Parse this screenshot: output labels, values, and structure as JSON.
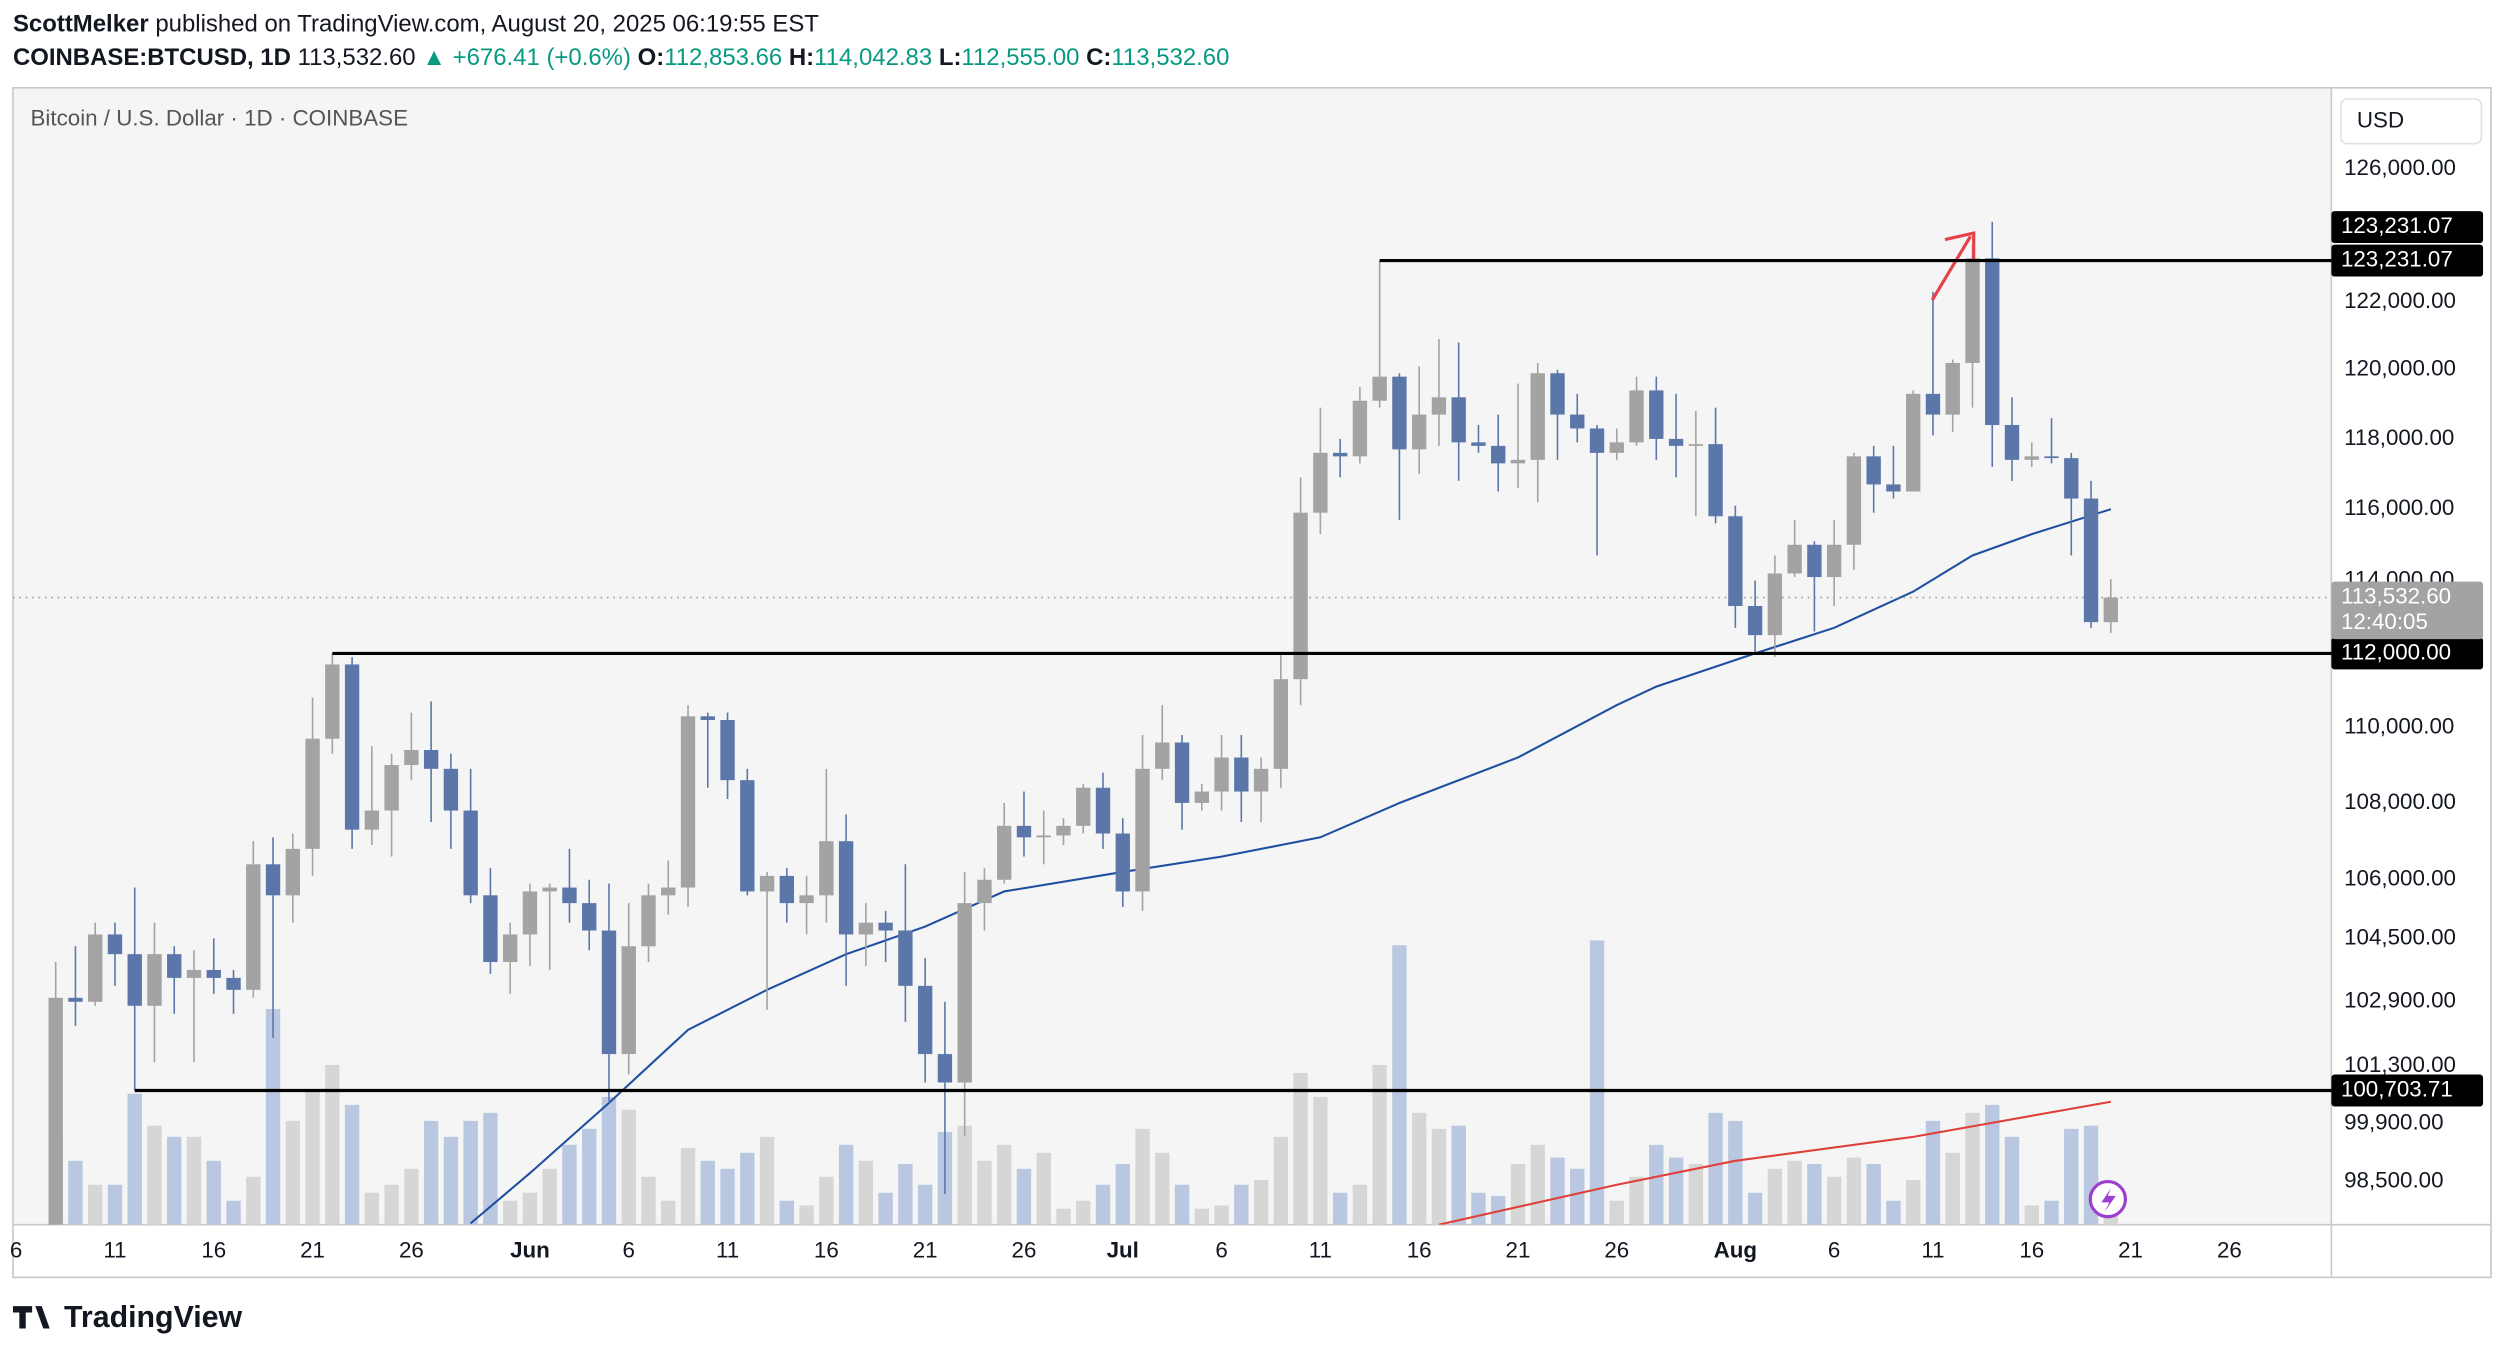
{
  "header": {
    "author": "ScottMelker",
    "published": "published on TradingView.com, August 20, 2025 06:19:55 EST",
    "symbol": "COINBASE:BTCUSD, 1D",
    "price": "113,532.60",
    "change": "▲ +676.41 (+0.6%)",
    "ohlc": [
      {
        "key": "O:",
        "value": "112,853.66"
      },
      {
        "key": "H:",
        "value": "114,042.83"
      },
      {
        "key": "L:",
        "value": "112,555.00"
      },
      {
        "key": "C:",
        "value": "113,532.60"
      }
    ],
    "logo": "TradingView"
  },
  "chart_data": {
    "type": "candlestick",
    "title": "Bitcoin / U.S. Dollar · 1D · COINBASE",
    "currency": "USD",
    "log_scale": true,
    "grid": false,
    "up_color": "#a3a3a3",
    "down_color": "#5b77aa",
    "volume_up_color": "#d6d6d6",
    "volume_down_color": "#b9c7e0",
    "xlim": [
      "2025-05-06",
      "2025-08-31"
    ],
    "ylim": [
      97470,
      128520
    ],
    "yticks": [
      {
        "value": 126000,
        "label": "126,000.00"
      },
      {
        "value": 122000,
        "label": "122,000.00"
      },
      {
        "value": 120000,
        "label": "120,000.00"
      },
      {
        "value": 118000,
        "label": "118,000.00"
      },
      {
        "value": 116000,
        "label": "116,000.00"
      },
      {
        "value": 114000,
        "label": "114,000.00"
      },
      {
        "value": 110000,
        "label": "110,000.00"
      },
      {
        "value": 108000,
        "label": "108,000.00"
      },
      {
        "value": 106000,
        "label": "106,000.00"
      },
      {
        "value": 104500,
        "label": "104,500.00"
      },
      {
        "value": 102900,
        "label": "102,900.00"
      },
      {
        "value": 101300,
        "label": "101,300.00"
      },
      {
        "value": 99900,
        "label": "99,900.00"
      },
      {
        "value": 98500,
        "label": "98,500.00"
      }
    ],
    "xticks": [
      {
        "value": "2025-05-06",
        "label": "6"
      },
      {
        "value": "2025-05-11",
        "label": "11"
      },
      {
        "value": "2025-05-16",
        "label": "16"
      },
      {
        "value": "2025-05-21",
        "label": "21"
      },
      {
        "value": "2025-05-26",
        "label": "26"
      },
      {
        "value": "2025-06-01",
        "label": "Jun"
      },
      {
        "value": "2025-06-06",
        "label": "6"
      },
      {
        "value": "2025-06-11",
        "label": "11"
      },
      {
        "value": "2025-06-16",
        "label": "16"
      },
      {
        "value": "2025-06-21",
        "label": "21"
      },
      {
        "value": "2025-06-26",
        "label": "26"
      },
      {
        "value": "2025-07-01",
        "label": "Jul"
      },
      {
        "value": "2025-07-06",
        "label": "6"
      },
      {
        "value": "2025-07-11",
        "label": "11"
      },
      {
        "value": "2025-07-16",
        "label": "16"
      },
      {
        "value": "2025-07-21",
        "label": "21"
      },
      {
        "value": "2025-07-26",
        "label": "26"
      },
      {
        "value": "2025-08-01",
        "label": "Aug"
      },
      {
        "value": "2025-08-06",
        "label": "6"
      },
      {
        "value": "2025-08-11",
        "label": "11"
      },
      {
        "value": "2025-08-16",
        "label": "16"
      },
      {
        "value": "2025-08-21",
        "label": "21"
      },
      {
        "value": "2025-08-26",
        "label": "26"
      }
    ],
    "x": [
      "2025-05-08",
      "2025-05-09",
      "2025-05-10",
      "2025-05-11",
      "2025-05-12",
      "2025-05-13",
      "2025-05-14",
      "2025-05-15",
      "2025-05-16",
      "2025-05-17",
      "2025-05-18",
      "2025-05-19",
      "2025-05-20",
      "2025-05-21",
      "2025-05-22",
      "2025-05-23",
      "2025-05-24",
      "2025-05-25",
      "2025-05-26",
      "2025-05-27",
      "2025-05-28",
      "2025-05-29",
      "2025-05-30",
      "2025-05-31",
      "2025-06-01",
      "2025-06-02",
      "2025-06-03",
      "2025-06-04",
      "2025-06-05",
      "2025-06-06",
      "2025-06-07",
      "2025-06-08",
      "2025-06-09",
      "2025-06-10",
      "2025-06-11",
      "2025-06-12",
      "2025-06-13",
      "2025-06-14",
      "2025-06-15",
      "2025-06-16",
      "2025-06-17",
      "2025-06-18",
      "2025-06-19",
      "2025-06-20",
      "2025-06-21",
      "2025-06-22",
      "2025-06-23",
      "2025-06-24",
      "2025-06-25",
      "2025-06-26",
      "2025-06-27",
      "2025-06-28",
      "2025-06-29",
      "2025-06-30",
      "2025-07-01",
      "2025-07-02",
      "2025-07-03",
      "2025-07-04",
      "2025-07-05",
      "2025-07-06",
      "2025-07-07",
      "2025-07-08",
      "2025-07-09",
      "2025-07-10",
      "2025-07-11",
      "2025-07-12",
      "2025-07-13",
      "2025-07-14",
      "2025-07-15",
      "2025-07-16",
      "2025-07-17",
      "2025-07-18",
      "2025-07-19",
      "2025-07-20",
      "2025-07-21",
      "2025-07-22",
      "2025-07-23",
      "2025-07-24",
      "2025-07-25",
      "2025-07-26",
      "2025-07-27",
      "2025-07-28",
      "2025-07-29",
      "2025-07-30",
      "2025-07-31",
      "2025-08-01",
      "2025-08-02",
      "2025-08-03",
      "2025-08-04",
      "2025-08-05",
      "2025-08-06",
      "2025-08-07",
      "2025-08-08",
      "2025-08-09",
      "2025-08-10",
      "2025-08-11",
      "2025-08-12",
      "2025-08-13",
      "2025-08-14",
      "2025-08-15",
      "2025-08-16",
      "2025-08-17",
      "2025-08-18",
      "2025-08-19",
      "2025-08-20"
    ],
    "open": [
      97000,
      103000,
      102900,
      104600,
      104100,
      102800,
      104100,
      103500,
      103700,
      103500,
      103200,
      106400,
      105600,
      106800,
      109700,
      111700,
      107300,
      107800,
      109000,
      109400,
      108900,
      107800,
      105600,
      103900,
      104600,
      105700,
      105800,
      105400,
      104700,
      101600,
      104300,
      105600,
      105800,
      110300,
      110200,
      108600,
      105700,
      106100,
      105400,
      105600,
      107000,
      104600,
      104900,
      104700,
      103300,
      101600,
      100900,
      105400,
      106000,
      107400,
      107100,
      107150,
      107400,
      108400,
      107200,
      105700,
      108900,
      109600,
      108000,
      108300,
      109200,
      108300,
      108900,
      111300,
      115900,
      117600,
      117500,
      119100,
      119800,
      117700,
      118700,
      119200,
      117900,
      117800,
      117300,
      117400,
      119900,
      118700,
      118300,
      117600,
      117900,
      119400,
      118000,
      117800,
      117850,
      115800,
      113300,
      112500,
      114200,
      115000,
      114100,
      115000,
      117500,
      116700,
      116500,
      119300,
      118700,
      120200,
      123300,
      118400,
      117400,
      117500,
      117450,
      116300,
      112853.66
    ],
    "high": [
      103900,
      104300,
      104900,
      104900,
      105800,
      104900,
      104300,
      104200,
      104500,
      103700,
      107000,
      107100,
      107200,
      110800,
      112000,
      111900,
      109500,
      109300,
      110400,
      110700,
      109300,
      108900,
      106300,
      104900,
      105900,
      105900,
      106800,
      106000,
      105900,
      105400,
      105900,
      106500,
      110600,
      110400,
      110400,
      108900,
      106200,
      106300,
      106100,
      108900,
      107700,
      105400,
      105200,
      106400,
      104000,
      102900,
      106200,
      106300,
      108000,
      108300,
      107800,
      107600,
      108500,
      108800,
      107600,
      109800,
      110600,
      109800,
      108500,
      109800,
      109800,
      109200,
      112000,
      116900,
      118900,
      118000,
      119500,
      123231.07,
      119900,
      120100,
      120900,
      120800,
      118400,
      118700,
      119600,
      120200,
      120000,
      119300,
      118400,
      118300,
      119800,
      119800,
      119300,
      118800,
      118900,
      116100,
      114000,
      114700,
      115700,
      115100,
      115700,
      117600,
      117800,
      117800,
      119400,
      122300,
      120300,
      123700,
      124400,
      119200,
      117900,
      118600,
      117600,
      116800,
      114042.83
    ],
    "low": [
      96900,
      102300,
      102800,
      103300,
      100700,
      101400,
      102600,
      101400,
      103100,
      102600,
      103000,
      102000,
      104900,
      106100,
      109300,
      106800,
      106900,
      106600,
      108600,
      107500,
      106800,
      105400,
      103600,
      103100,
      103800,
      103700,
      104900,
      104200,
      100400,
      101100,
      103900,
      105100,
      105300,
      108400,
      108100,
      105600,
      102700,
      104900,
      104600,
      104900,
      103300,
      103800,
      103900,
      102400,
      100900,
      98200,
      99600,
      104700,
      105900,
      106600,
      106400,
      106900,
      107200,
      106800,
      105300,
      105200,
      108600,
      107300,
      107800,
      107800,
      107500,
      107500,
      108400,
      110600,
      115300,
      116900,
      117300,
      118900,
      115700,
      117000,
      117800,
      116800,
      117600,
      116500,
      116600,
      116200,
      117400,
      117900,
      114700,
      117400,
      117800,
      117400,
      116900,
      115800,
      115600,
      112700,
      112000,
      111900,
      114100,
      112600,
      113300,
      114300,
      115900,
      116300,
      116500,
      118100,
      118200,
      118900,
      117200,
      116800,
      117200,
      117300,
      114700,
      112700,
      112555
    ],
    "close": [
      103000,
      102900,
      104600,
      104100,
      102800,
      104100,
      103500,
      103700,
      103500,
      103200,
      106400,
      105600,
      106800,
      109700,
      111700,
      107300,
      107800,
      109000,
      109400,
      108900,
      107800,
      105600,
      103900,
      104600,
      105700,
      105800,
      105400,
      104700,
      101600,
      104300,
      105600,
      105800,
      110300,
      110200,
      108600,
      105700,
      106100,
      105400,
      105600,
      107000,
      104600,
      104900,
      104700,
      103300,
      101600,
      100900,
      105400,
      106000,
      107400,
      107100,
      107150,
      107400,
      108400,
      107200,
      105700,
      108900,
      109600,
      108000,
      108300,
      109200,
      108300,
      108900,
      111300,
      115900,
      117600,
      117500,
      119100,
      119800,
      117700,
      118700,
      119200,
      117900,
      117800,
      117300,
      117400,
      119900,
      118700,
      118300,
      117600,
      117900,
      119400,
      118000,
      117800,
      117850,
      115800,
      113300,
      112500,
      114200,
      115000,
      114100,
      115000,
      117500,
      116700,
      116500,
      119300,
      118700,
      120200,
      123300,
      118400,
      117400,
      117500,
      117450,
      116300,
      112856.19,
      113532.6
    ],
    "volume": [
      55,
      40,
      25,
      25,
      82,
      62,
      55,
      55,
      40,
      15,
      30,
      135,
      65,
      85,
      100,
      75,
      20,
      25,
      35,
      65,
      55,
      65,
      70,
      15,
      20,
      35,
      50,
      60,
      80,
      72,
      30,
      15,
      48,
      40,
      35,
      45,
      55,
      15,
      12,
      30,
      50,
      40,
      20,
      38,
      25,
      58,
      62,
      40,
      50,
      35,
      45,
      10,
      15,
      25,
      38,
      60,
      45,
      25,
      10,
      12,
      25,
      28,
      55,
      95,
      80,
      20,
      25,
      100,
      175,
      70,
      60,
      62,
      20,
      18,
      38,
      50,
      42,
      35,
      178,
      15,
      30,
      50,
      42,
      38,
      70,
      65,
      20,
      35,
      40,
      38,
      30,
      42,
      38,
      15,
      28,
      65,
      45,
      70,
      75,
      55,
      12,
      15,
      60,
      62,
      10
    ],
    "volume_lim": [
      0,
      200
    ],
    "ma": {
      "color": "#1e4fa0",
      "x": [
        "2025-05-29",
        "2025-06-01",
        "2025-06-05",
        "2025-06-09",
        "2025-06-13",
        "2025-06-17",
        "2025-06-21",
        "2025-06-25",
        "2025-07-01",
        "2025-07-06",
        "2025-07-11",
        "2025-07-15",
        "2025-07-21",
        "2025-07-26",
        "2025-07-28",
        "2025-08-02",
        "2025-08-06",
        "2025-08-10",
        "2025-08-13",
        "2025-08-16",
        "2025-08-20"
      ],
      "values": [
        97500,
        98700,
        100400,
        102200,
        103200,
        104100,
        104800,
        105700,
        106200,
        106600,
        107100,
        108000,
        109200,
        110600,
        111100,
        112000,
        112700,
        113700,
        114700,
        115300,
        116000
      ]
    },
    "volume_ma": {
      "color": "#e0403a",
      "x": [
        "2025-07-17",
        "2025-07-26",
        "2025-08-01",
        "2025-08-10",
        "2025-08-20"
      ],
      "values": [
        0,
        25,
        40,
        55,
        77
      ]
    },
    "levels": [
      {
        "value": 123231.07,
        "label": "123,231.07",
        "start": "2025-07-14"
      },
      {
        "value": 112000,
        "label": "112,000.00",
        "start": "2025-05-22"
      },
      {
        "value": 100703.71,
        "label": "100,703.71",
        "start": "2025-05-12"
      }
    ],
    "last_label": "113,532.60",
    "countdown": "12:40:05"
  }
}
